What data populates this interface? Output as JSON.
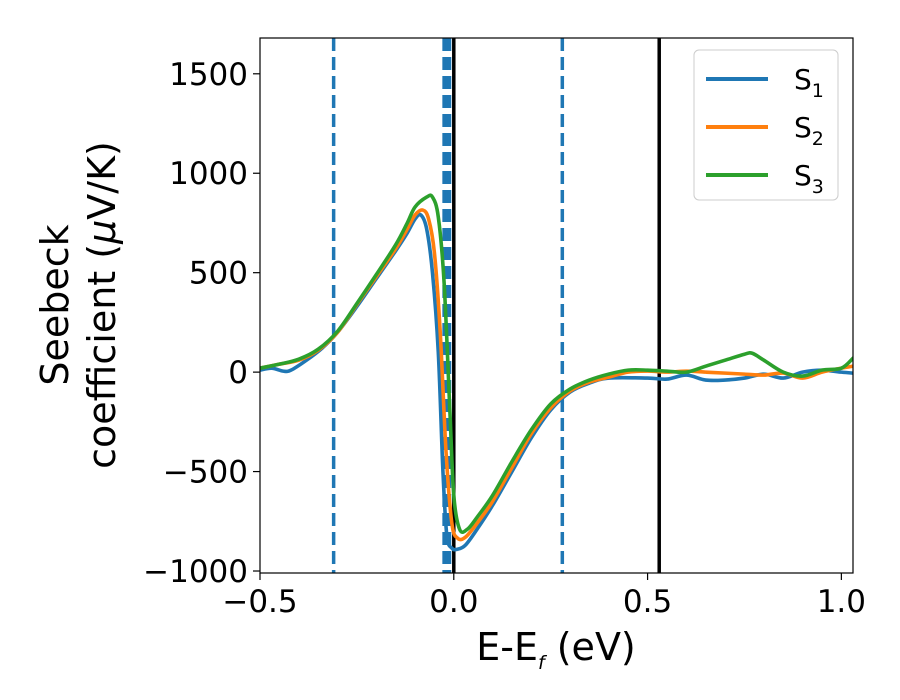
{
  "chart_data": {
    "type": "line",
    "xlabel": {
      "main": "E-E",
      "sub": "f",
      "unit": " (eV)"
    },
    "ylabel": {
      "line1": "Seebeck",
      "line2": "coefficient  (",
      "mu": "μ",
      "unit": "V/K)"
    },
    "xlim": [
      -0.5,
      1.03
    ],
    "ylim": [
      -1010,
      1680
    ],
    "xticks": [
      {
        "value": -0.5,
        "label": "−0.5"
      },
      {
        "value": 0.0,
        "label": "0.0"
      },
      {
        "value": 0.5,
        "label": "0.5"
      },
      {
        "value": 1.0,
        "label": "1.0"
      }
    ],
    "yticks": [
      {
        "value": 1500,
        "label": "1500"
      },
      {
        "value": 1000,
        "label": "1000"
      },
      {
        "value": 500,
        "label": "500"
      },
      {
        "value": 0,
        "label": "0"
      },
      {
        "value": -500,
        "label": "−500"
      },
      {
        "value": -1000,
        "label": "−1000"
      }
    ],
    "grid": false,
    "legend_position": "top-right",
    "series": [
      {
        "name": "S",
        "sub": "1",
        "color": "#1f77b4",
        "points": [
          [
            -0.5,
            10
          ],
          [
            -0.47,
            20
          ],
          [
            -0.44,
            5
          ],
          [
            -0.42,
            10
          ],
          [
            -0.38,
            60
          ],
          [
            -0.34,
            120
          ],
          [
            -0.3,
            200
          ],
          [
            -0.25,
            330
          ],
          [
            -0.2,
            470
          ],
          [
            -0.15,
            610
          ],
          [
            -0.12,
            700
          ],
          [
            -0.1,
            770
          ],
          [
            -0.085,
            790
          ],
          [
            -0.07,
            720
          ],
          [
            -0.055,
            500
          ],
          [
            -0.04,
            100
          ],
          [
            -0.028,
            -500
          ],
          [
            -0.018,
            -820
          ],
          [
            -0.005,
            -885
          ],
          [
            0.01,
            -890
          ],
          [
            0.03,
            -870
          ],
          [
            0.06,
            -790
          ],
          [
            0.1,
            -670
          ],
          [
            0.15,
            -500
          ],
          [
            0.2,
            -330
          ],
          [
            0.25,
            -190
          ],
          [
            0.3,
            -100
          ],
          [
            0.35,
            -55
          ],
          [
            0.4,
            -30
          ],
          [
            0.5,
            -30
          ],
          [
            0.55,
            -35
          ],
          [
            0.6,
            -15
          ],
          [
            0.65,
            -40
          ],
          [
            0.7,
            -40
          ],
          [
            0.75,
            -30
          ],
          [
            0.8,
            -10
          ],
          [
            0.85,
            -30
          ],
          [
            0.9,
            0
          ],
          [
            0.95,
            10
          ],
          [
            1.0,
            0
          ],
          [
            1.03,
            -5
          ]
        ]
      },
      {
        "name": "S",
        "sub": "2",
        "color": "#ff7f0e",
        "points": [
          [
            -0.5,
            20
          ],
          [
            -0.45,
            40
          ],
          [
            -0.4,
            60
          ],
          [
            -0.35,
            110
          ],
          [
            -0.3,
            200
          ],
          [
            -0.25,
            340
          ],
          [
            -0.2,
            480
          ],
          [
            -0.15,
            620
          ],
          [
            -0.12,
            720
          ],
          [
            -0.1,
            790
          ],
          [
            -0.08,
            815
          ],
          [
            -0.065,
            770
          ],
          [
            -0.05,
            600
          ],
          [
            -0.035,
            200
          ],
          [
            -0.02,
            -400
          ],
          [
            -0.005,
            -760
          ],
          [
            0.01,
            -835
          ],
          [
            0.03,
            -830
          ],
          [
            0.06,
            -760
          ],
          [
            0.1,
            -650
          ],
          [
            0.15,
            -480
          ],
          [
            0.2,
            -310
          ],
          [
            0.25,
            -180
          ],
          [
            0.3,
            -95
          ],
          [
            0.35,
            -50
          ],
          [
            0.4,
            -25
          ],
          [
            0.45,
            0
          ],
          [
            0.5,
            5
          ],
          [
            0.55,
            0
          ],
          [
            0.6,
            5
          ],
          [
            0.65,
            0
          ],
          [
            0.7,
            -5
          ],
          [
            0.75,
            -10
          ],
          [
            0.8,
            -15
          ],
          [
            0.85,
            -5
          ],
          [
            0.9,
            -30
          ],
          [
            0.95,
            0
          ],
          [
            1.0,
            20
          ],
          [
            1.03,
            30
          ]
        ]
      },
      {
        "name": "S",
        "sub": "3",
        "color": "#2ca02c",
        "points": [
          [
            -0.5,
            20
          ],
          [
            -0.45,
            40
          ],
          [
            -0.4,
            65
          ],
          [
            -0.35,
            115
          ],
          [
            -0.3,
            205
          ],
          [
            -0.25,
            345
          ],
          [
            -0.2,
            490
          ],
          [
            -0.15,
            640
          ],
          [
            -0.12,
            750
          ],
          [
            -0.1,
            830
          ],
          [
            -0.07,
            880
          ],
          [
            -0.055,
            880
          ],
          [
            -0.04,
            780
          ],
          [
            -0.025,
            450
          ],
          [
            -0.01,
            -200
          ],
          [
            0.0,
            -620
          ],
          [
            0.015,
            -790
          ],
          [
            0.035,
            -790
          ],
          [
            0.06,
            -730
          ],
          [
            0.1,
            -620
          ],
          [
            0.15,
            -450
          ],
          [
            0.2,
            -290
          ],
          [
            0.25,
            -160
          ],
          [
            0.3,
            -85
          ],
          [
            0.35,
            -40
          ],
          [
            0.4,
            -10
          ],
          [
            0.45,
            10
          ],
          [
            0.5,
            10
          ],
          [
            0.55,
            5
          ],
          [
            0.6,
            0
          ],
          [
            0.65,
            30
          ],
          [
            0.7,
            60
          ],
          [
            0.75,
            90
          ],
          [
            0.77,
            95
          ],
          [
            0.8,
            60
          ],
          [
            0.85,
            0
          ],
          [
            0.9,
            -20
          ],
          [
            0.95,
            10
          ],
          [
            1.0,
            20
          ],
          [
            1.03,
            70
          ]
        ]
      }
    ],
    "vlines": [
      {
        "x": -0.31,
        "style": "dashed",
        "color": "#1f77b4"
      },
      {
        "x": -0.025,
        "style": "dashed",
        "color": "#1f77b4"
      },
      {
        "x": -0.018,
        "style": "dashed",
        "color": "#1f77b4"
      },
      {
        "x": -0.011,
        "style": "dashed",
        "color": "#1f77b4"
      },
      {
        "x": 0.28,
        "style": "dashed",
        "color": "#1f77b4"
      },
      {
        "x": 0.0,
        "style": "solid",
        "color": "#000000"
      },
      {
        "x": 0.53,
        "style": "solid",
        "color": "#000000"
      }
    ]
  }
}
